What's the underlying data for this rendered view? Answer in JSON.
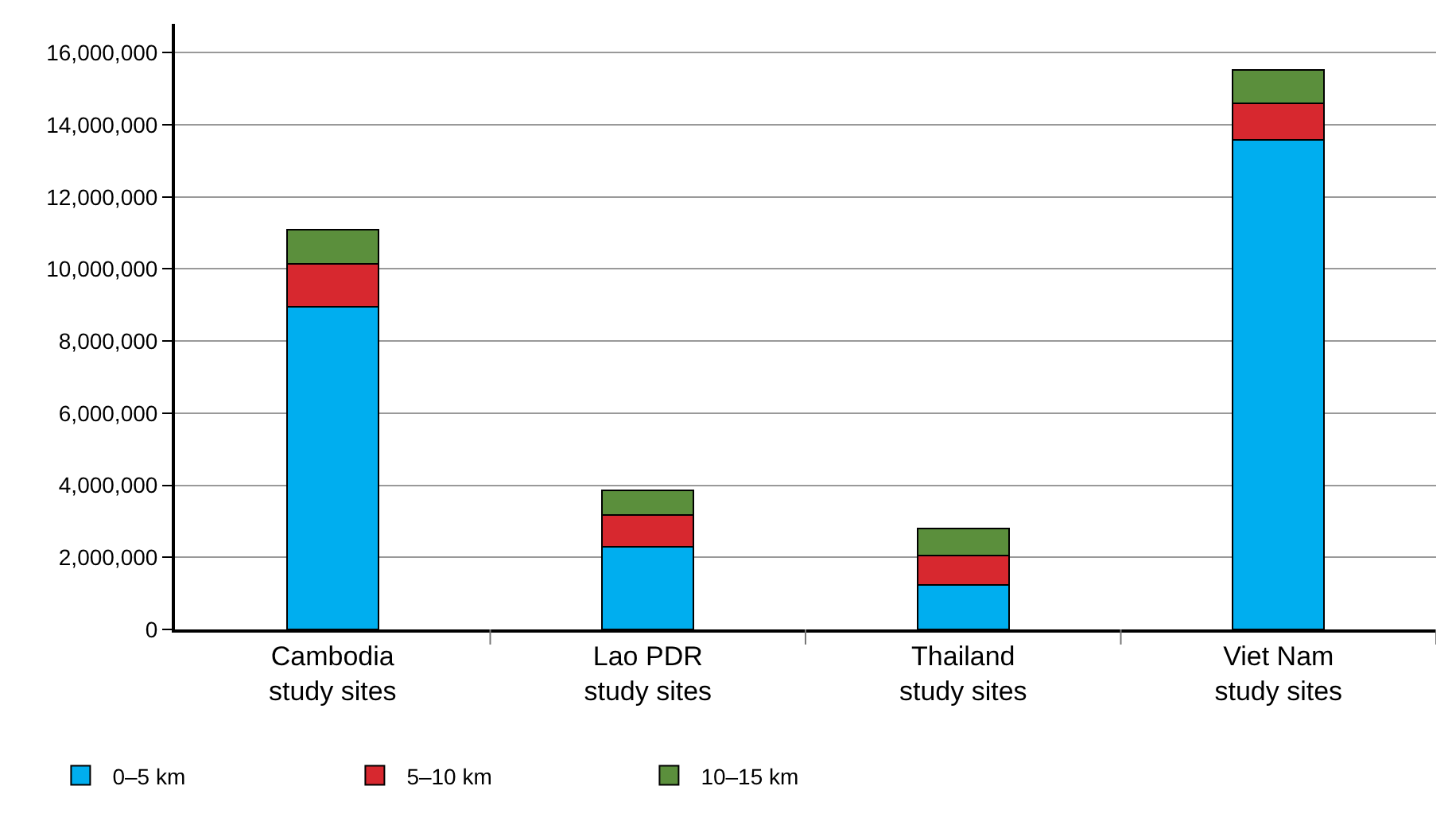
{
  "chart_data": {
    "type": "bar",
    "stacked": true,
    "categories": [
      "Cambodia\nstudy sites",
      "Lao PDR\nstudy sites",
      "Thailand\nstudy sites",
      "Viet Nam\nstudy sites"
    ],
    "series": [
      {
        "name": "0–5 km",
        "color": "#00aeef",
        "values": [
          8960000,
          2290000,
          1230000,
          13580000
        ]
      },
      {
        "name": "5–10 km",
        "color": "#d7282f",
        "values": [
          1180000,
          890000,
          810000,
          1020000
        ]
      },
      {
        "name": "10–15 km",
        "color": "#5b8f3c",
        "values": [
          940000,
          680000,
          760000,
          930000
        ]
      }
    ],
    "ylim": [
      0,
      16800000
    ],
    "yticks": [
      {
        "value": 0,
        "label": "0"
      },
      {
        "value": 2000000,
        "label": "2,000,000"
      },
      {
        "value": 4000000,
        "label": "4,000,000"
      },
      {
        "value": 6000000,
        "label": "6,000,000"
      },
      {
        "value": 8000000,
        "label": "8,000,000"
      },
      {
        "value": 10000000,
        "label": "10,000,000"
      },
      {
        "value": 12000000,
        "label": "12,000,000"
      },
      {
        "value": 14000000,
        "label": "14,000,000"
      },
      {
        "value": 16000000,
        "label": "16,000,000"
      }
    ],
    "grid": "y",
    "legend": "bottom left"
  }
}
